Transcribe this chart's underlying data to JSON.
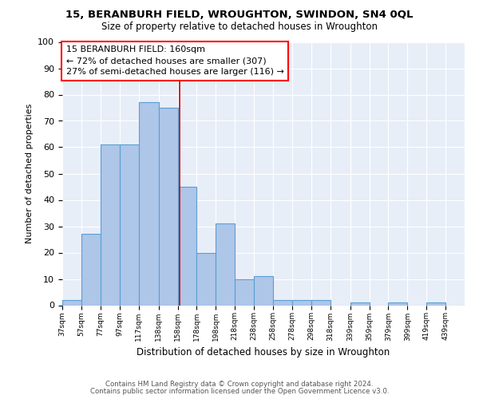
{
  "title": "15, BERANBURH FIELD, WROUGHTON, SWINDON, SN4 0QL",
  "subtitle": "Size of property relative to detached houses in Wroughton",
  "xlabel": "Distribution of detached houses by size in Wroughton",
  "ylabel": "Number of detached properties",
  "annotation_line1": "15 BERANBURH FIELD: 160sqm",
  "annotation_line2": "← 72% of detached houses are smaller (307)",
  "annotation_line3": "27% of semi-detached houses are larger (116) →",
  "property_size": 160,
  "bar_left_edges": [
    37,
    57,
    77,
    97,
    117,
    138,
    158,
    178,
    198,
    218,
    238,
    258,
    278,
    298,
    318,
    339,
    359,
    379,
    399,
    419,
    439
  ],
  "bar_heights": [
    2,
    27,
    61,
    61,
    77,
    75,
    45,
    20,
    31,
    10,
    11,
    2,
    2,
    2,
    0,
    1,
    0,
    1,
    0,
    1,
    0
  ],
  "bar_color": "#aec6e8",
  "bar_edge_color": "#5a9fd4",
  "red_line_color": "#cc0000",
  "background_color": "#e8eef8",
  "ylim": [
    0,
    100
  ],
  "xlim_left": 37,
  "xlim_right": 459,
  "footer_line1": "Contains HM Land Registry data © Crown copyright and database right 2024.",
  "footer_line2": "Contains public sector information licensed under the Open Government Licence v3.0."
}
